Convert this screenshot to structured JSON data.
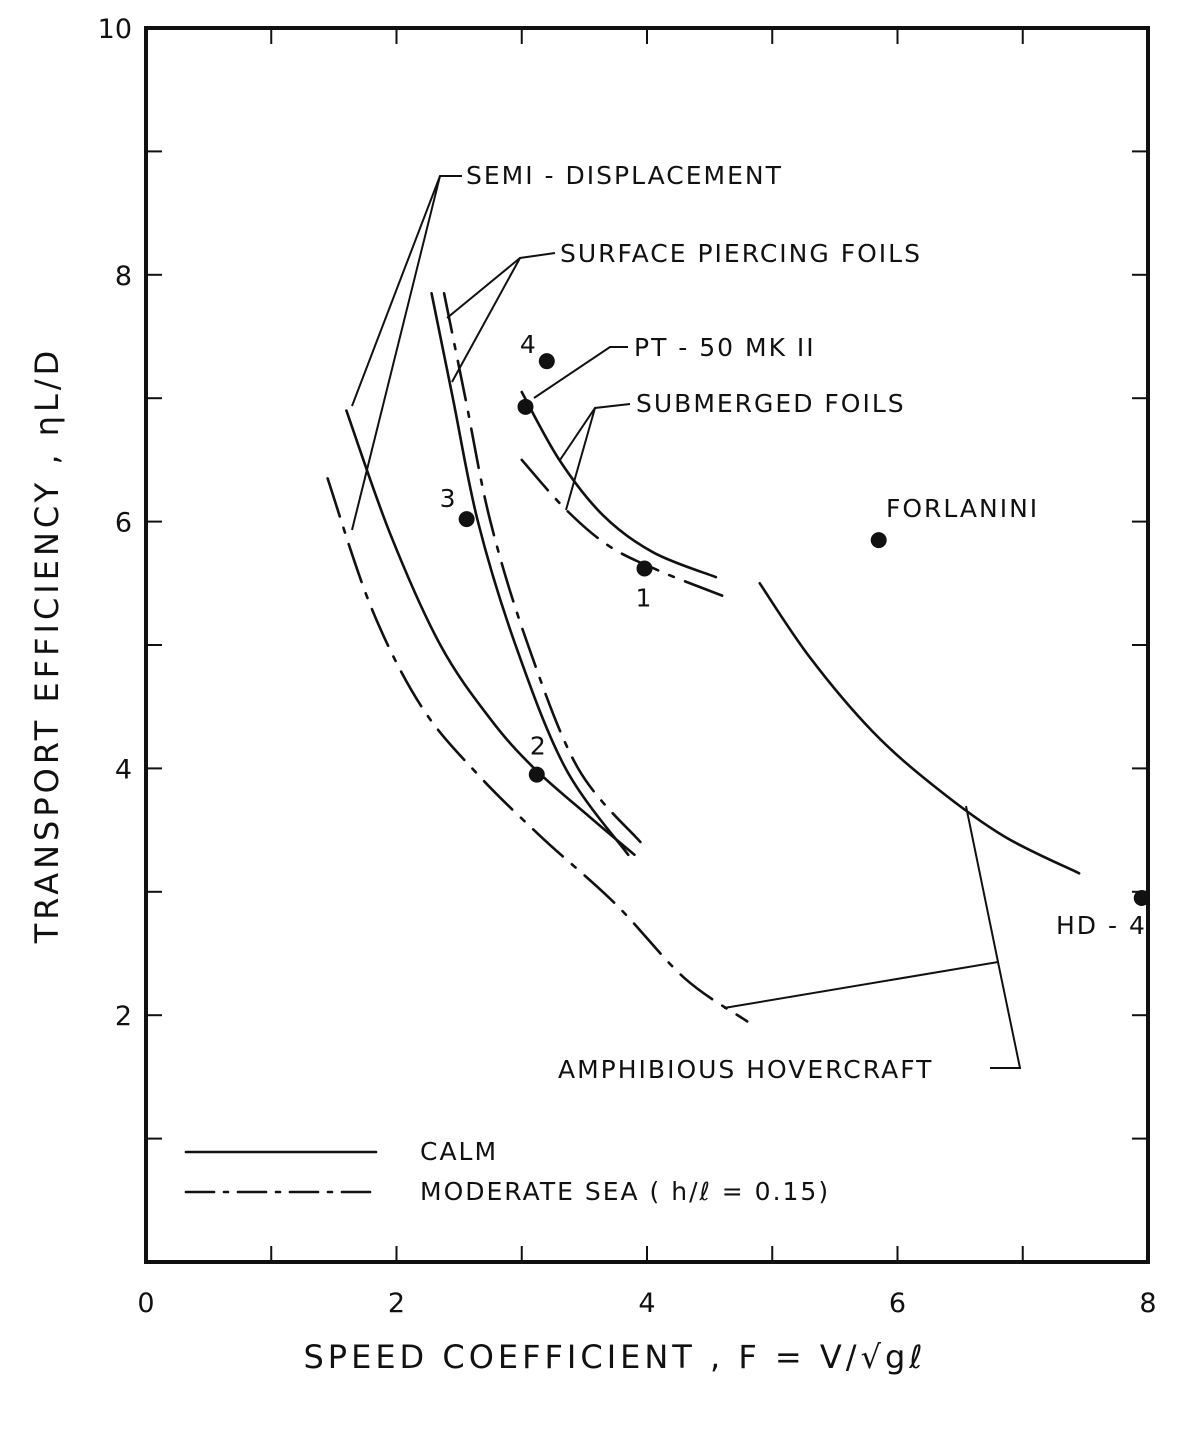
{
  "chart_data": {
    "type": "line",
    "xlabel": "SPEED COEFFICIENT , F = V/√gℓ",
    "ylabel": "TRANSPORT EFFICIENCY , ηL/D",
    "xlim": [
      0,
      8
    ],
    "ylim": [
      0,
      10
    ],
    "x_ticks": [
      "0",
      "2",
      "4",
      "6",
      "8"
    ],
    "y_ticks": [
      "2",
      "4",
      "6",
      "8",
      "10"
    ],
    "grid": false,
    "legend": {
      "placement": "bottom-left",
      "entries": [
        {
          "label": "CALM",
          "style": "solid"
        },
        {
          "label": "MODERATE SEA ( h/ℓ = 0.15)",
          "style": "dash-dot"
        }
      ]
    },
    "curves": [
      {
        "group": "semi_displacement",
        "style": "solid",
        "x": [
          1.6,
          1.95,
          2.35,
          2.75,
          3.1,
          3.55,
          3.9
        ],
        "y": [
          6.9,
          5.9,
          5.0,
          4.4,
          4.0,
          3.6,
          3.3
        ]
      },
      {
        "group": "semi_displacement",
        "style": "dash-dot",
        "x": [
          1.45,
          1.8,
          2.2,
          2.65,
          3.15,
          3.75,
          4.3,
          4.8
        ],
        "y": [
          6.35,
          5.3,
          4.5,
          3.95,
          3.45,
          2.9,
          2.3,
          1.95
        ]
      },
      {
        "group": "surface_piercing",
        "style": "solid",
        "x": [
          2.28,
          2.45,
          2.65,
          2.95,
          3.35,
          3.85
        ],
        "y": [
          7.85,
          7.0,
          6.0,
          5.0,
          4.0,
          3.3
        ]
      },
      {
        "group": "surface_piercing",
        "style": "dash-dot",
        "x": [
          2.38,
          2.55,
          2.75,
          3.05,
          3.45,
          3.95
        ],
        "y": [
          7.85,
          7.0,
          6.0,
          5.0,
          4.0,
          3.4
        ]
      },
      {
        "group": "submerged_foils",
        "style": "solid",
        "x": [
          3.0,
          3.3,
          3.65,
          4.05,
          4.55
        ],
        "y": [
          7.05,
          6.5,
          6.05,
          5.75,
          5.55
        ]
      },
      {
        "group": "submerged_foils",
        "style": "dash-dot",
        "x": [
          3.0,
          3.35,
          3.7,
          4.1,
          4.6
        ],
        "y": [
          6.5,
          6.1,
          5.8,
          5.6,
          5.4
        ]
      },
      {
        "group": "amphibious_hovercraft",
        "style": "solid",
        "x": [
          4.9,
          5.3,
          5.8,
          6.3,
          6.85,
          7.45
        ],
        "y": [
          5.5,
          4.9,
          4.3,
          3.85,
          3.45,
          3.15
        ]
      }
    ],
    "points": [
      {
        "label": "1",
        "x": 3.98,
        "y": 5.62
      },
      {
        "label": "2",
        "x": 3.12,
        "y": 3.95
      },
      {
        "label": "3",
        "x": 2.56,
        "y": 6.02
      },
      {
        "label": "4",
        "x": 3.2,
        "y": 7.3
      },
      {
        "label": "PT - 50 MK II",
        "x": 3.03,
        "y": 6.93
      },
      {
        "label": "FORLANINI",
        "x": 5.85,
        "y": 5.85
      },
      {
        "label": "HD - 4",
        "x": 7.95,
        "y": 2.95
      }
    ],
    "annotations": {
      "semi_displacement": "SEMI - DISPLACEMENT",
      "surface_piercing": "SURFACE  PIERCING  FOILS",
      "pt50": "PT - 50  MK  II",
      "submerged": "SUBMERGED  FOILS",
      "forlanini": "FORLANINI",
      "hd4": "HD - 4",
      "hovercraft": "AMPHIBIOUS   HOVERCRAFT"
    }
  }
}
